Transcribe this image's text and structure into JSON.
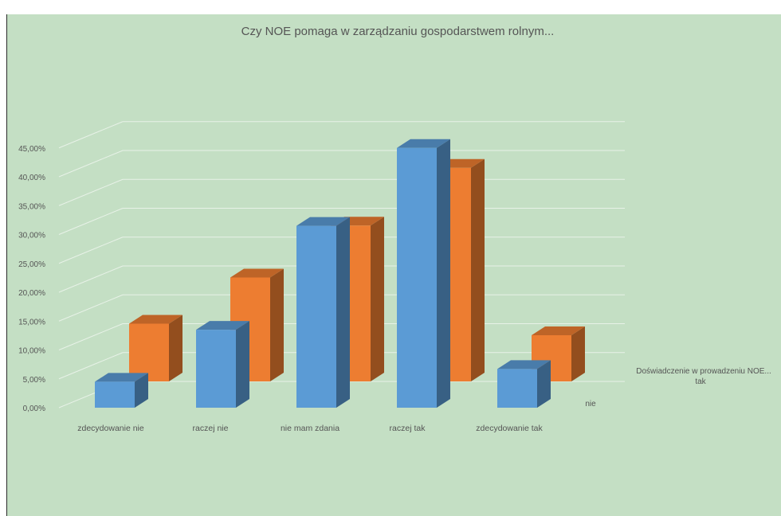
{
  "chart_data": {
    "type": "bar",
    "variant": "3d-clustered-column",
    "title": "Czy NOE pomaga w zarządzaniu gospodarstwem rolnym...",
    "categories": [
      "zdecydowanie nie",
      "raczej nie",
      "nie mam zdania",
      "raczej tak",
      "zdecydowanie tak"
    ],
    "y_ticks": [
      "0,00%",
      "5,00%",
      "10,00%",
      "15,00%",
      "20,00%",
      "25,00%",
      "30,00%",
      "35,00%",
      "40,00%",
      "45,00%"
    ],
    "ylim": [
      0,
      45
    ],
    "y_unit": "%",
    "series": [
      {
        "name": "tak",
        "color": "#5b9bd5",
        "values": [
          4.5,
          13.5,
          31.5,
          45.0,
          6.7
        ]
      },
      {
        "name": "nie",
        "color": "#ed7d31",
        "values": [
          10.0,
          18.0,
          27.0,
          37.0,
          8.0
        ]
      }
    ],
    "legend_title": "Doświadczenie w prowadzeniu NOE...",
    "gridlines": true,
    "background_color": "#c4dfc4"
  }
}
